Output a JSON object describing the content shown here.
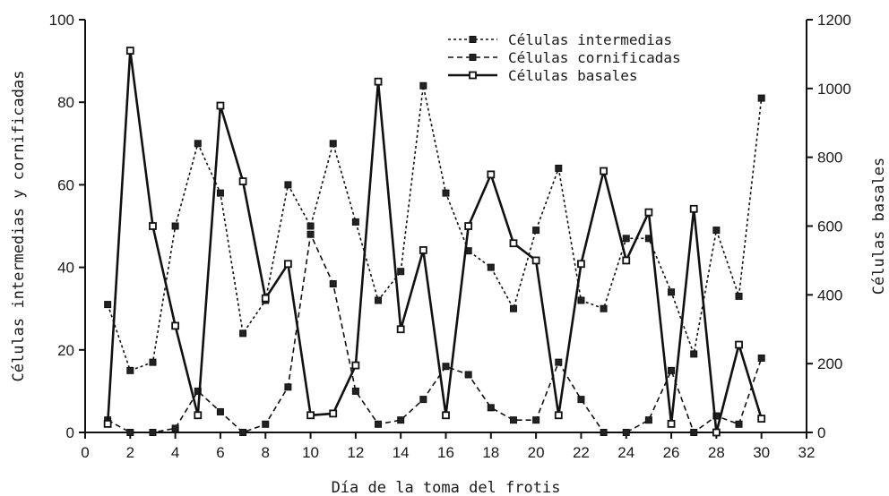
{
  "chart_data": {
    "type": "line",
    "title": "",
    "xlabel": "Día de la toma del frotis",
    "ylabel_left": "Células intermedias y cornificadas",
    "ylabel_right": "Células basales",
    "xlim": [
      0,
      32
    ],
    "ylim_left": [
      0,
      100
    ],
    "ylim_right": [
      0,
      1200
    ],
    "x_ticks": [
      "0",
      "2",
      "4",
      "6",
      "8",
      "10",
      "12",
      "14",
      "16",
      "18",
      "20",
      "22",
      "24",
      "26",
      "28",
      "30",
      "32"
    ],
    "y_left_ticks": [
      "0",
      "20",
      "40",
      "60",
      "80",
      "100"
    ],
    "y_right_ticks": [
      "0",
      "200",
      "400",
      "600",
      "800",
      "1000",
      "1200"
    ],
    "grid": false,
    "legend_position": "top-center",
    "x": [
      1,
      2,
      3,
      4,
      5,
      6,
      7,
      8,
      9,
      10,
      11,
      12,
      13,
      14,
      15,
      16,
      17,
      18,
      19,
      20,
      21,
      22,
      23,
      24,
      25,
      26,
      27,
      28,
      29,
      30
    ],
    "series": [
      {
        "name": "Células intermedias",
        "axis": "left",
        "style": "dotted",
        "values": [
          31,
          15,
          17,
          50,
          70,
          58,
          24,
          32,
          60,
          50,
          70,
          51,
          32,
          39,
          84,
          58,
          44,
          40,
          30,
          49,
          64,
          32,
          30,
          47,
          47,
          34,
          19,
          49,
          33,
          81
        ]
      },
      {
        "name": "Células cornificadas",
        "axis": "left",
        "style": "dashed",
        "values": [
          3,
          0,
          0,
          1,
          10,
          5,
          0,
          2,
          11,
          48,
          36,
          10,
          2,
          3,
          8,
          16,
          14,
          6,
          3,
          3,
          17,
          8,
          0,
          0,
          3,
          15,
          0,
          4,
          2,
          18
        ]
      },
      {
        "name": "Células basales",
        "axis": "right",
        "style": "solid",
        "values": [
          25,
          1110,
          600,
          310,
          50,
          950,
          730,
          390,
          490,
          50,
          55,
          195,
          1020,
          300,
          530,
          50,
          600,
          750,
          550,
          500,
          50,
          490,
          760,
          500,
          640,
          25,
          650,
          0,
          255,
          40
        ]
      }
    ]
  }
}
